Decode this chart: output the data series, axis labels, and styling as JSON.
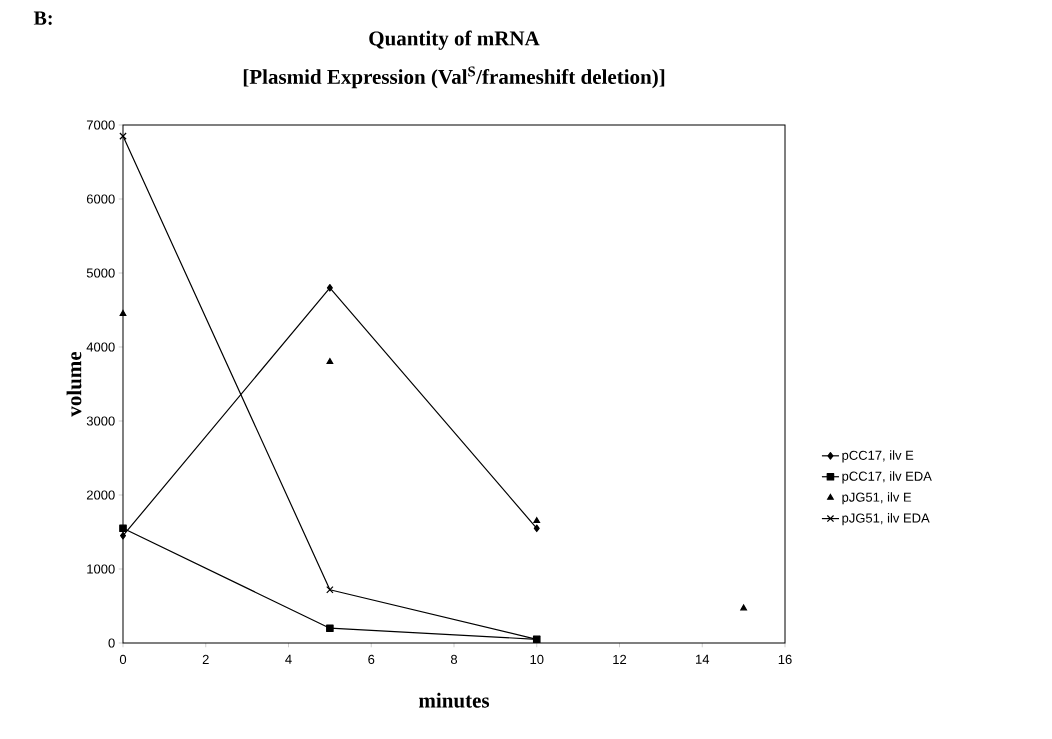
{
  "chart_data": {
    "type": "line",
    "title": "Quantity of mRNA",
    "subtitle": "[Plasmid Expression (Val$^{S}$/frameshift deletion)]",
    "xlabel": "minutes",
    "ylabel": "volume",
    "annotations": [
      "B:"
    ],
    "xlim": [
      0,
      16
    ],
    "ylim": [
      0,
      7000
    ],
    "xticks": [
      0,
      2,
      4,
      6,
      8,
      10,
      12,
      14,
      16
    ],
    "yticks": [
      0,
      1000,
      2000,
      3000,
      4000,
      5000,
      6000,
      7000
    ],
    "legend": "right",
    "grid": false,
    "series": [
      {
        "name": "pCC17, ilv E",
        "color": "#000000",
        "marker": "diamond",
        "x": [
          0,
          5,
          10
        ],
        "values": [
          1450,
          4800,
          1550
        ]
      },
      {
        "name": "pCC17, ilv EDA",
        "color": "#000000",
        "marker": "square",
        "x": [
          0,
          5,
          10
        ],
        "values": [
          1550,
          200,
          50
        ]
      },
      {
        "name": "pJG51, ilv E",
        "type": "scatter",
        "color": "#000000",
        "marker": "triangle",
        "x": [
          0,
          5,
          10,
          15
        ],
        "values": [
          4450,
          3800,
          1650,
          470
        ]
      },
      {
        "name": "pJG51, ilv EDA",
        "color": "#000000",
        "marker": "cross",
        "x": [
          0,
          5,
          10
        ],
        "values": [
          6850,
          720,
          50
        ]
      }
    ]
  }
}
